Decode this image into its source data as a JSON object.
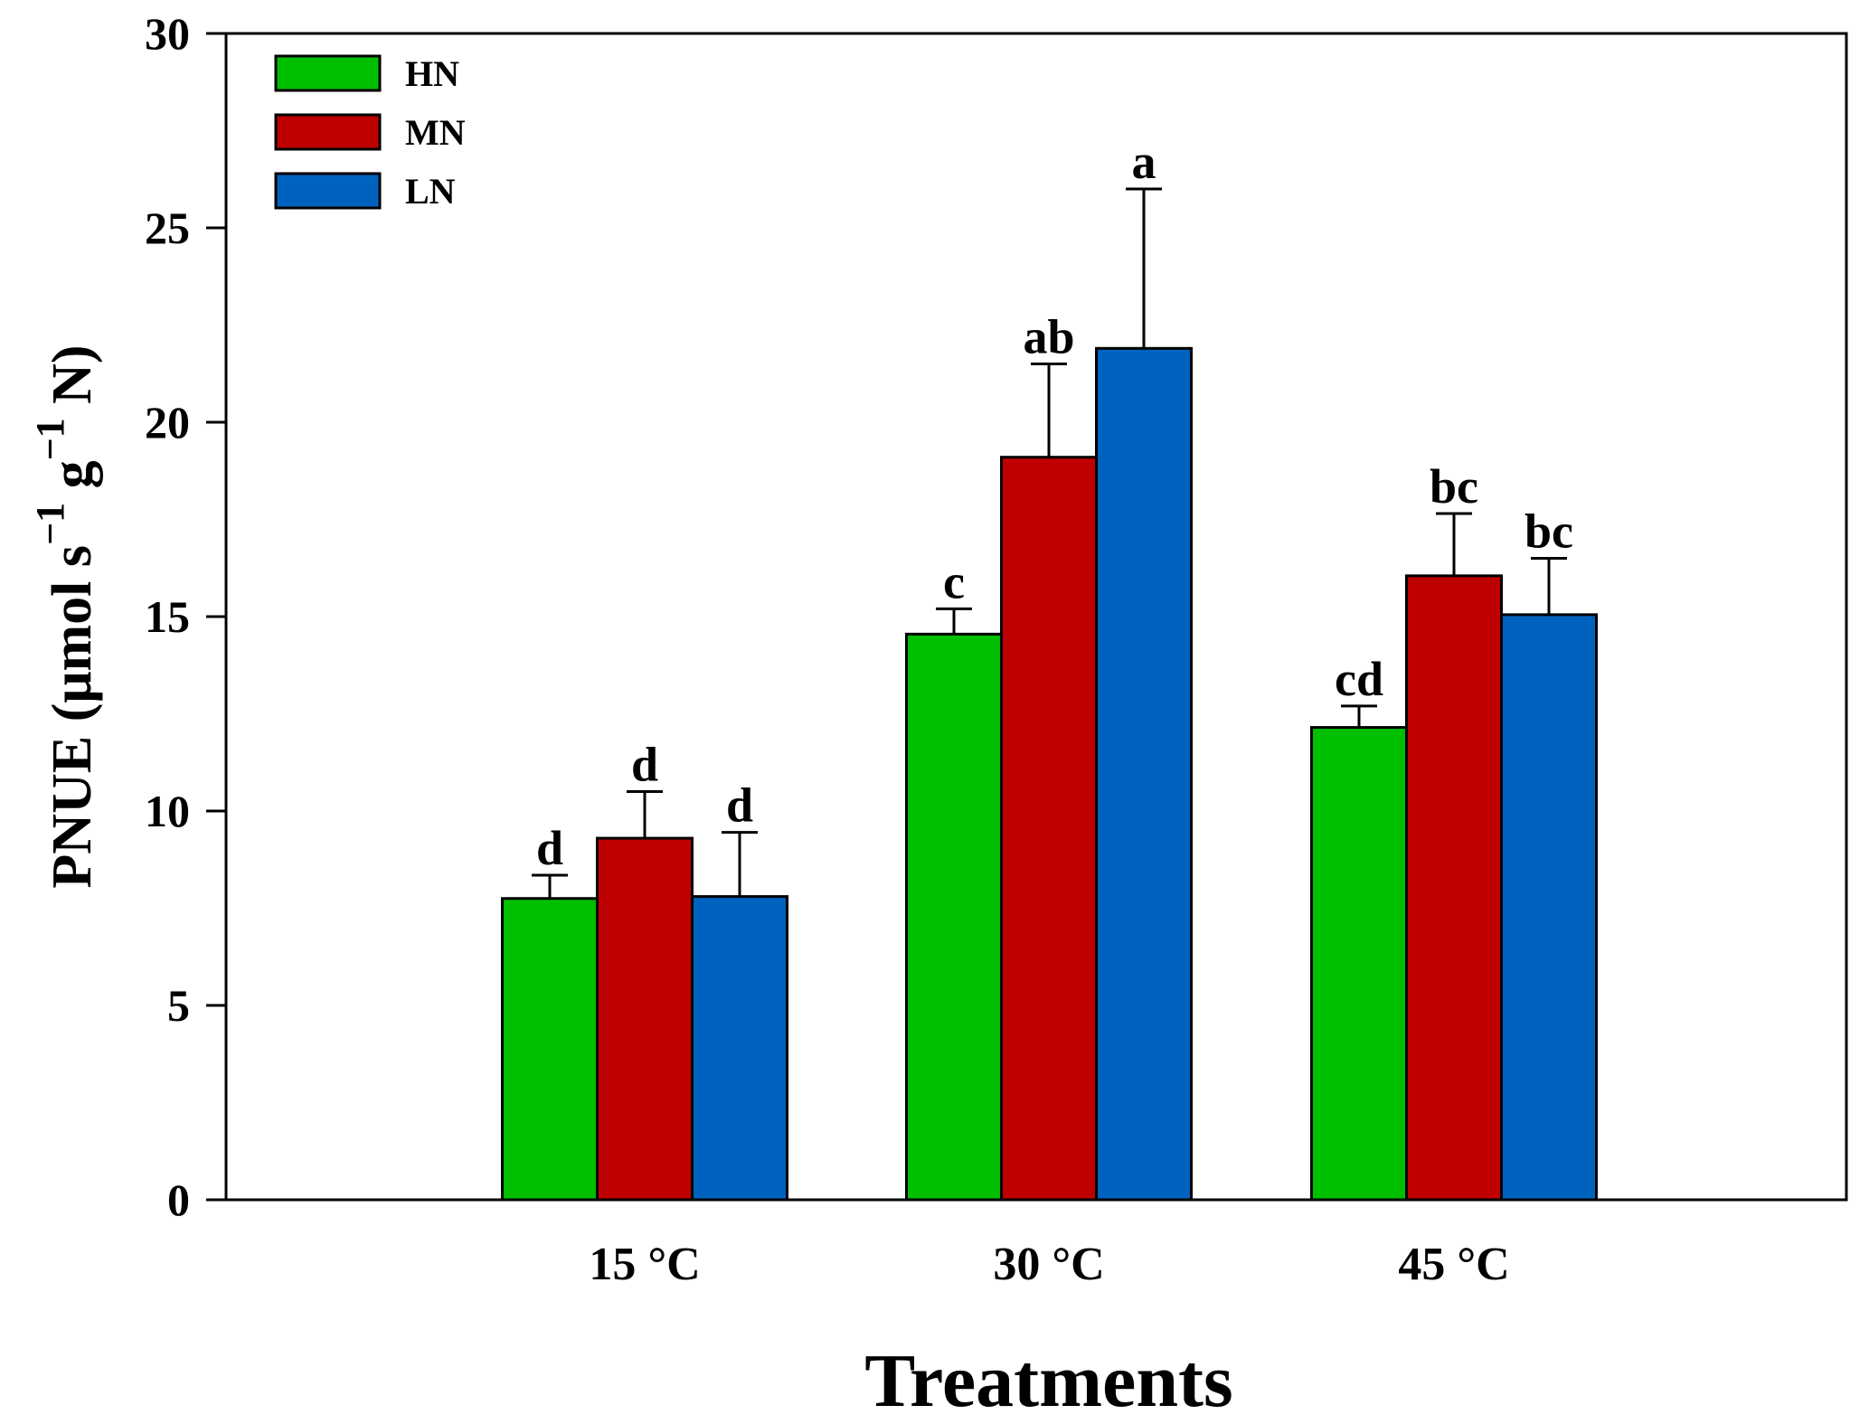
{
  "chart_data": {
    "type": "bar",
    "title": "",
    "xlabel": "Treatments",
    "ylabel": {
      "prefix": "PNUE (μmol s",
      "sup1": "−1",
      "mid": " g",
      "sup2": "−1",
      "suffix": " N)"
    },
    "ylim": [
      0,
      30
    ],
    "yticks": [
      0,
      5,
      10,
      15,
      20,
      25,
      30
    ],
    "categories": [
      "15 °C",
      "30 °C",
      "45 °C"
    ],
    "series": [
      {
        "name": "HN",
        "color": "#00bf00",
        "values": [
          7.75,
          14.55,
          12.15
        ],
        "errors": [
          0.6,
          0.65,
          0.55
        ],
        "letters": [
          "d",
          "c",
          "cd"
        ]
      },
      {
        "name": "MN",
        "color": "#bf0000",
        "values": [
          9.3,
          19.1,
          16.05
        ],
        "errors": [
          1.2,
          2.4,
          1.6
        ],
        "letters": [
          "d",
          "ab",
          "bc"
        ]
      },
      {
        "name": "LN",
        "color": "#0062bf",
        "values": [
          7.8,
          21.9,
          15.05
        ],
        "errors": [
          1.65,
          4.1,
          1.45
        ],
        "letters": [
          "d",
          "a",
          "bc"
        ]
      }
    ],
    "legend_position": "top-left"
  }
}
